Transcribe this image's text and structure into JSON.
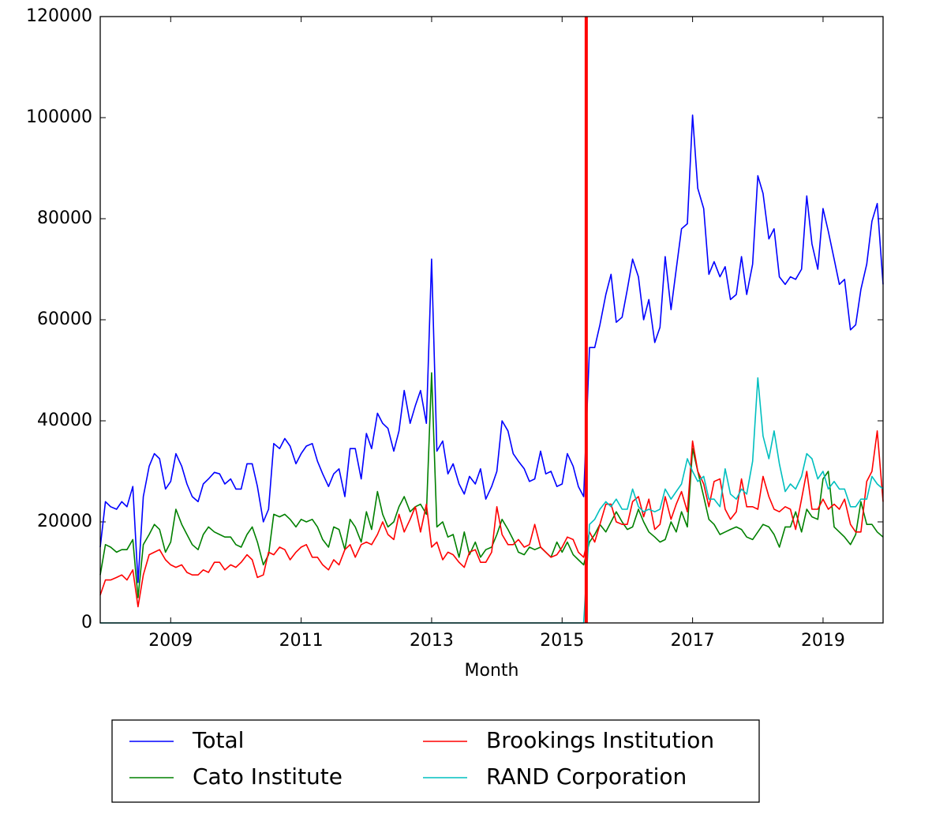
{
  "chart_data": {
    "type": "line",
    "xlabel": "Month",
    "x": [
      2007.92,
      2008,
      2008.08,
      2008.17,
      2008.25,
      2008.33,
      2008.42,
      2008.5,
      2008.58,
      2008.67,
      2008.75,
      2008.83,
      2008.92,
      2009,
      2009.08,
      2009.17,
      2009.25,
      2009.33,
      2009.42,
      2009.5,
      2009.58,
      2009.67,
      2009.75,
      2009.83,
      2009.92,
      2010,
      2010.08,
      2010.17,
      2010.25,
      2010.33,
      2010.42,
      2010.5,
      2010.58,
      2010.67,
      2010.75,
      2010.83,
      2010.92,
      2011,
      2011.08,
      2011.17,
      2011.25,
      2011.33,
      2011.42,
      2011.5,
      2011.58,
      2011.67,
      2011.75,
      2011.83,
      2011.92,
      2012,
      2012.08,
      2012.17,
      2012.25,
      2012.33,
      2012.42,
      2012.5,
      2012.58,
      2012.67,
      2012.75,
      2012.83,
      2012.92,
      2013,
      2013.08,
      2013.17,
      2013.25,
      2013.33,
      2013.42,
      2013.5,
      2013.58,
      2013.67,
      2013.75,
      2013.83,
      2013.92,
      2014,
      2014.08,
      2014.17,
      2014.25,
      2014.33,
      2014.42,
      2014.5,
      2014.58,
      2014.67,
      2014.75,
      2014.83,
      2014.92,
      2015,
      2015.08,
      2015.17,
      2015.25,
      2015.33,
      2015.42,
      2015.5,
      2015.58,
      2015.67,
      2015.75,
      2015.83,
      2015.92,
      2016,
      2016.08,
      2016.17,
      2016.25,
      2016.33,
      2016.42,
      2016.5,
      2016.58,
      2016.67,
      2016.75,
      2016.83,
      2016.92,
      2017,
      2017.08,
      2017.17,
      2017.25,
      2017.33,
      2017.42,
      2017.5,
      2017.58,
      2017.67,
      2017.75,
      2017.83,
      2017.92,
      2018,
      2018.08,
      2018.17,
      2018.25,
      2018.33,
      2018.42,
      2018.5,
      2018.58,
      2018.67,
      2018.75,
      2018.83,
      2018.92,
      2019,
      2019.08,
      2019.17,
      2019.25,
      2019.33,
      2019.42,
      2019.5,
      2019.58,
      2019.67,
      2019.75,
      2019.83,
      2019.92
    ],
    "series": [
      {
        "name": "Total",
        "color": "#0000ff",
        "values": [
          15000,
          24000,
          23000,
          22500,
          24000,
          23000,
          27000,
          8000,
          25000,
          31000,
          33500,
          32500,
          26500,
          28000,
          33500,
          31000,
          27500,
          25000,
          24000,
          27500,
          28500,
          29800,
          29500,
          27500,
          28500,
          26500,
          26500,
          31500,
          31500,
          27000,
          20000,
          22500,
          35500,
          34500,
          36500,
          35000,
          31500,
          33500,
          35000,
          35500,
          32000,
          29500,
          27000,
          29500,
          30500,
          25000,
          34500,
          34500,
          28500,
          37500,
          34500,
          41500,
          39500,
          38500,
          34000,
          38000,
          46000,
          39500,
          43000,
          46000,
          39500,
          72000,
          34000,
          36000,
          29500,
          31500,
          27500,
          25500,
          29000,
          27500,
          30500,
          24500,
          27000,
          30000,
          40000,
          38000,
          33500,
          32000,
          30500,
          28000,
          28500,
          34000,
          29500,
          30000,
          27000,
          27500,
          33500,
          31000,
          27000,
          25000,
          54500,
          54500,
          59000,
          65000,
          69000,
          59500,
          60500,
          66000,
          72000,
          68500,
          60000,
          64000,
          55500,
          58500,
          72500,
          62000,
          70000,
          78000,
          79000,
          100500,
          86000,
          82000,
          69000,
          71500,
          68500,
          70500,
          64000,
          65000,
          72500,
          65000,
          71000,
          88500,
          85000,
          76000,
          78000,
          68500,
          67000,
          68500,
          68000,
          70000,
          84500,
          75000,
          70000,
          82000,
          77500,
          72000,
          67000,
          68000,
          58000,
          59000,
          66000,
          71000,
          79500,
          83000,
          67000
        ]
      },
      {
        "name": "Cato Institute",
        "color": "#008000",
        "values": [
          9500,
          15500,
          15000,
          14000,
          14500,
          14500,
          16500,
          5000,
          15500,
          17500,
          19500,
          18500,
          14000,
          16000,
          22500,
          19500,
          17500,
          15500,
          14500,
          17500,
          19000,
          18000,
          17500,
          17000,
          17000,
          15500,
          15000,
          17500,
          19000,
          16000,
          11500,
          13500,
          21500,
          21000,
          21500,
          20500,
          19000,
          20500,
          20000,
          20500,
          19000,
          16500,
          15000,
          19000,
          18500,
          14500,
          20500,
          19000,
          16000,
          22000,
          18500,
          26000,
          21500,
          19000,
          20000,
          23000,
          25000,
          22000,
          23000,
          23500,
          21500,
          49500,
          19000,
          20000,
          17000,
          17500,
          13000,
          18000,
          13500,
          16000,
          13000,
          14500,
          15000,
          17500,
          20500,
          18500,
          16500,
          14000,
          13500,
          15000,
          14500,
          15000,
          14000,
          13000,
          16000,
          14000,
          16000,
          13500,
          12500,
          11500,
          16000,
          17500,
          19500,
          18000,
          20000,
          22000,
          20000,
          18500,
          19000,
          22500,
          20000,
          18000,
          17000,
          16000,
          16500,
          20000,
          18000,
          22000,
          19000,
          34500,
          30000,
          25000,
          20500,
          19500,
          17500,
          18000,
          18500,
          19000,
          18500,
          17000,
          16500,
          18000,
          19500,
          19000,
          17500,
          15000,
          19000,
          19000,
          22000,
          18000,
          22500,
          21000,
          20500,
          28500,
          30000,
          19000,
          18000,
          17000,
          15500,
          17500,
          24000,
          19500,
          19500,
          18000,
          17000
        ]
      },
      {
        "name": "Brookings Institution",
        "color": "#ff0000",
        "values": [
          5500,
          8500,
          8500,
          9000,
          9500,
          8500,
          10500,
          3200,
          9500,
          13500,
          14000,
          14500,
          12500,
          11500,
          11000,
          11500,
          10000,
          9500,
          9500,
          10500,
          10000,
          12000,
          12000,
          10500,
          11500,
          11000,
          12000,
          13500,
          12500,
          9000,
          9500,
          14000,
          13500,
          15000,
          14500,
          12500,
          14000,
          15000,
          15500,
          13000,
          13000,
          11500,
          10500,
          12500,
          11500,
          14500,
          15500,
          13000,
          15500,
          16000,
          15500,
          17500,
          20000,
          17500,
          16500,
          21500,
          18000,
          20500,
          23000,
          18000,
          23500,
          15000,
          16000,
          12500,
          14000,
          13500,
          12000,
          11000,
          14000,
          14500,
          12000,
          12000,
          14000,
          23000,
          17500,
          15500,
          15500,
          16500,
          15000,
          15500,
          19500,
          15000,
          14000,
          13000,
          13500,
          15000,
          17000,
          16500,
          14000,
          13000,
          18000,
          16000,
          19500,
          23500,
          23500,
          20000,
          19500,
          19500,
          24000,
          25000,
          21000,
          24500,
          18500,
          19500,
          25000,
          20500,
          23500,
          26000,
          22000,
          36000,
          30000,
          27500,
          23000,
          28000,
          28500,
          22500,
          20500,
          22000,
          28500,
          23000,
          23000,
          22500,
          29000,
          25000,
          22500,
          22000,
          23000,
          22500,
          18500,
          24500,
          30000,
          22500,
          22500,
          24500,
          22500,
          23500,
          22500,
          24500,
          19500,
          18000,
          18000,
          28000,
          30000,
          38000,
          24000
        ]
      },
      {
        "name": "RAND Corporation",
        "color": "#00bfbf",
        "values": [
          0,
          0,
          0,
          0,
          0,
          0,
          0,
          0,
          0,
          0,
          0,
          0,
          0,
          0,
          0,
          0,
          0,
          0,
          0,
          0,
          0,
          0,
          0,
          0,
          0,
          0,
          0,
          0,
          0,
          0,
          0,
          0,
          0,
          0,
          0,
          0,
          0,
          0,
          0,
          0,
          0,
          0,
          0,
          0,
          0,
          0,
          0,
          0,
          0,
          0,
          0,
          0,
          0,
          0,
          0,
          0,
          0,
          0,
          0,
          0,
          0,
          0,
          0,
          0,
          0,
          0,
          0,
          0,
          0,
          0,
          0,
          0,
          0,
          0,
          0,
          0,
          0,
          0,
          0,
          0,
          0,
          0,
          0,
          0,
          0,
          0,
          0,
          0,
          0,
          0,
          19500,
          20500,
          22500,
          24000,
          23000,
          24500,
          22500,
          22500,
          26500,
          23000,
          22000,
          22500,
          22000,
          22500,
          26500,
          24500,
          26000,
          27500,
          32500,
          30000,
          28000,
          29000,
          24500,
          24500,
          23000,
          30500,
          25500,
          24500,
          26500,
          25500,
          32000,
          48500,
          37000,
          32500,
          38000,
          31500,
          26000,
          27500,
          26500,
          29000,
          33500,
          32500,
          28500,
          30000,
          26500,
          28000,
          26500,
          26500,
          23000,
          23000,
          24500,
          24500,
          29000,
          27500,
          26500
        ]
      }
    ],
    "vline": {
      "x": 2015.37,
      "color": "#ff0000"
    },
    "xlim": [
      2007.92,
      2019.92
    ],
    "xticks": [
      2009,
      2011,
      2013,
      2015,
      2017,
      2019
    ],
    "ylim": [
      0,
      120000
    ],
    "yticks": [
      0,
      20000,
      40000,
      60000,
      80000,
      100000,
      120000
    ],
    "legend": "lower center"
  }
}
